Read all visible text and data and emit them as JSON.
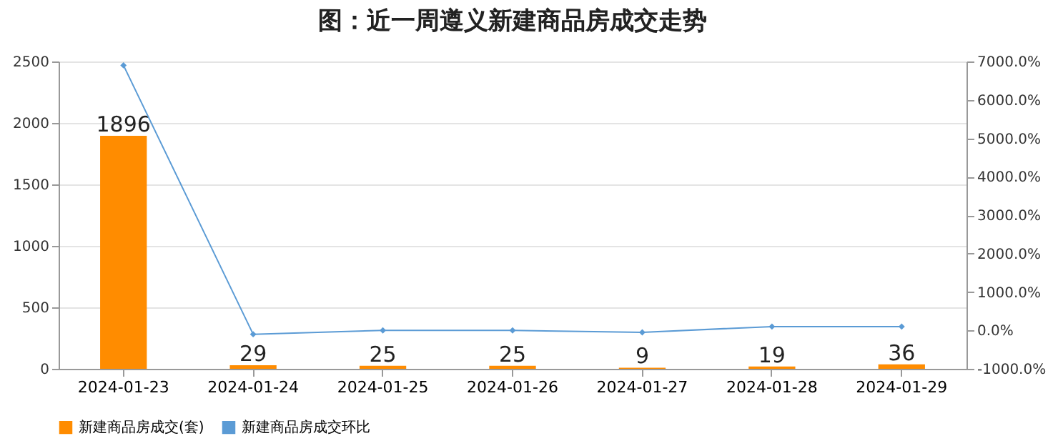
{
  "chart_data": {
    "type": "bar",
    "title": "图：近一周遵义新建商品房成交走势",
    "categories": [
      "2024-01-23",
      "2024-01-24",
      "2024-01-25",
      "2024-01-26",
      "2024-01-27",
      "2024-01-28",
      "2024-01-29"
    ],
    "series": [
      {
        "name": "新建商品房成交(套)",
        "color": "#ff8c00",
        "values": [
          1896,
          29,
          25,
          25,
          9,
          19,
          36
        ],
        "value_labels": [
          "1896",
          "29",
          "25",
          "25",
          "9",
          "19",
          "36"
        ]
      },
      {
        "name": "新建商品房成交环比",
        "type": "line",
        "axis": "y2",
        "color": "#5b9bd5",
        "values": [
          6900,
          -100,
          0,
          0,
          -50,
          100,
          100
        ]
      }
    ],
    "ylim": [
      0,
      2500
    ],
    "yticks": [
      0,
      500,
      1000,
      1500,
      2000,
      2500
    ],
    "y2lim": [
      -1000,
      7000
    ],
    "y2ticks": [
      {
        "value": -1000,
        "label": "-1000.0%"
      },
      {
        "value": 0,
        "label": "0.0%"
      },
      {
        "value": 1000,
        "label": "1000.0%"
      },
      {
        "value": 2000,
        "label": "2000.0%"
      },
      {
        "value": 3000,
        "label": "3000.0%"
      },
      {
        "value": 4000,
        "label": "4000.0%"
      },
      {
        "value": 5000,
        "label": "5000.0%"
      },
      {
        "value": 6000,
        "label": "6000.0%"
      },
      {
        "value": 7000,
        "label": "7000.0%"
      }
    ],
    "grid": "y",
    "legend": "bottom",
    "marker": "diamond",
    "line_style": "solid"
  }
}
